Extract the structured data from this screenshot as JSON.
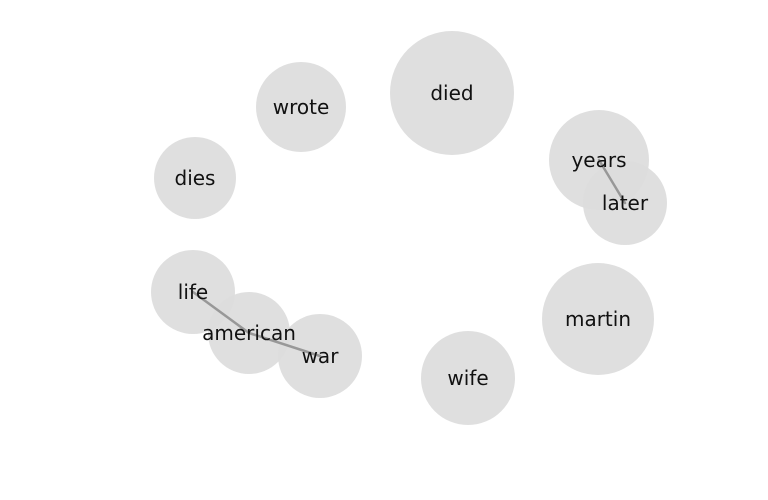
{
  "colors": {
    "node_fill": "#dcdcdc",
    "edge_stroke": "#8c8c8c",
    "label": "#111111",
    "background": "#ffffff"
  },
  "nodes": [
    {
      "id": "died",
      "label": "died"
    },
    {
      "id": "wrote",
      "label": "wrote"
    },
    {
      "id": "years",
      "label": "years"
    },
    {
      "id": "later",
      "label": "later"
    },
    {
      "id": "dies",
      "label": "dies"
    },
    {
      "id": "life",
      "label": "life"
    },
    {
      "id": "american",
      "label": "american"
    },
    {
      "id": "war",
      "label": "war"
    },
    {
      "id": "martin",
      "label": "martin"
    },
    {
      "id": "wife",
      "label": "wife"
    }
  ],
  "edges": [
    {
      "source": "years",
      "target": "later"
    },
    {
      "source": "life",
      "target": "american"
    },
    {
      "source": "american",
      "target": "war"
    }
  ]
}
